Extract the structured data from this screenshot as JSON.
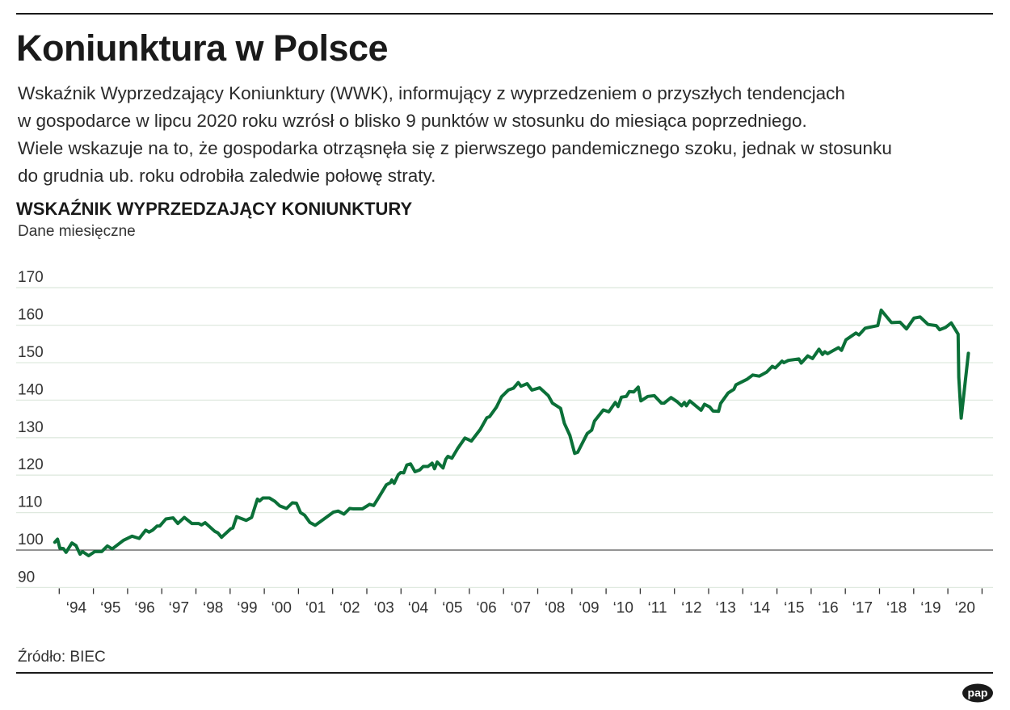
{
  "title": "Koniunktura w Polsce",
  "description": [
    "Wskaźnik Wyprzedzający Koniunktury (WWK), informujący z wyprzedzeniem o przyszłych tendencjach",
    "w gospodarce w lipcu 2020 roku wzrósł o blisko 9 punktów w stosunku do miesiąca poprzedniego.",
    "Wiele wskazuje na to, że gospodarka otrząsnęła się z pierwszego pandemicznego szoku, jednak w stosunku",
    "do grudnia ub. roku odrobiła zaledwie połowę straty."
  ],
  "source": "Źródło: BIEC",
  "logo_text": "pap",
  "colors": {
    "line": "#0b7038",
    "grid": "#dfe9df",
    "baseline": "#555555",
    "text": "#1a1a1a"
  },
  "chart_data": {
    "type": "line",
    "title": "WSKAŹNIK WYPRZEDZAJĄCY KONIUNKTURY",
    "subtitle": "Dane miesięczne",
    "ylim": [
      90,
      170
    ],
    "yticks": [
      90,
      100,
      110,
      120,
      130,
      140,
      150,
      160,
      170
    ],
    "ytick_labels": [
      "90",
      "100",
      "110",
      "120",
      "130",
      "140",
      "150",
      "160",
      "170"
    ],
    "baseline": 100,
    "grid": true,
    "xlim": [
      1994,
      2021
    ],
    "xtick_labels": [
      "‘94",
      "‘95",
      "‘96",
      "‘97",
      "‘98",
      "‘99",
      "‘00",
      "‘01",
      "‘02",
      "‘03",
      "‘04",
      "‘05",
      "‘06",
      "‘07",
      "‘08",
      "‘09",
      "‘10",
      "‘11",
      "‘12",
      "‘13",
      "‘14",
      "‘15",
      "‘16",
      "‘17",
      "‘18",
      "‘19",
      "‘20"
    ],
    "series": [
      {
        "x": [
          1993.87,
          1993.95,
          1994.02,
          1994.12,
          1994.2,
          1994.37,
          1994.49,
          1994.61,
          1994.68,
          1994.86,
          1995.04,
          1995.24,
          1995.41,
          1995.55,
          1995.88,
          1996.13,
          1996.34,
          1996.53,
          1996.63,
          1996.73,
          1996.86,
          1996.94,
          1997.12,
          1997.33,
          1997.47,
          1997.66,
          1997.88,
          1998.08,
          1998.16,
          1998.27,
          1998.55,
          1998.64,
          1998.75,
          1999.02,
          1999.08,
          1999.19,
          1999.47,
          1999.63,
          1999.8,
          1999.86,
          1999.96,
          2000.15,
          2000.31,
          2000.45,
          2000.65,
          2000.82,
          2000.94,
          2001.06,
          2001.18,
          2001.33,
          2001.49,
          2001.69,
          2002.02,
          2002.16,
          2002.33,
          2002.5,
          2002.61,
          2002.87,
          2003.08,
          2003.2,
          2003.36,
          2003.57,
          2003.69,
          2003.73,
          2003.8,
          2003.92,
          2003.99,
          2004.08,
          2004.17,
          2004.28,
          2004.41,
          2004.55,
          2004.65,
          2004.79,
          2004.91,
          2004.98,
          2005.06,
          2005.23,
          2005.31,
          2005.37,
          2005.49,
          2005.65,
          2005.87,
          2006.06,
          2006.32,
          2006.51,
          2006.59,
          2006.79,
          2006.94,
          2007.14,
          2007.29,
          2007.43,
          2007.51,
          2007.69,
          2007.83,
          2008.06,
          2008.31,
          2008.43,
          2008.67,
          2008.78,
          2008.94,
          2009.08,
          2009.17,
          2009.45,
          2009.58,
          2009.66,
          2009.92,
          2010.08,
          2010.27,
          2010.35,
          2010.45,
          2010.59,
          2010.68,
          2010.81,
          2010.94,
          2011.02,
          2011.22,
          2011.41,
          2011.62,
          2011.7,
          2011.9,
          2012.08,
          2012.21,
          2012.29,
          2012.35,
          2012.45,
          2012.78,
          2012.88,
          2013.03,
          2013.13,
          2013.29,
          2013.35,
          2013.57,
          2013.74,
          2013.8,
          2014.13,
          2014.29,
          2014.48,
          2014.7,
          2014.86,
          2014.95,
          2015.15,
          2015.2,
          2015.33,
          2015.64,
          2015.71,
          2015.9,
          2016.04,
          2016.23,
          2016.33,
          2016.4,
          2016.48,
          2016.8,
          2016.89,
          2017.02,
          2017.31,
          2017.4,
          2017.58,
          2017.95,
          2018.05,
          2018.35,
          2018.6,
          2018.79,
          2019.01,
          2019.19,
          2019.42,
          2019.66,
          2019.76,
          2019.93,
          2020.1,
          2020.3,
          2020.32,
          2020.39,
          2020.6
        ],
        "y": [
          102.1,
          102.9,
          100.5,
          100.4,
          99.4,
          101.9,
          101.2,
          98.9,
          99.6,
          98.5,
          99.6,
          99.6,
          101.1,
          100.3,
          102.6,
          103.7,
          103.1,
          105.3,
          104.8,
          105.3,
          106.4,
          106.4,
          108.3,
          108.6,
          107.1,
          108.7,
          107.1,
          107.1,
          106.7,
          107.3,
          105.0,
          104.6,
          103.4,
          105.7,
          105.9,
          108.9,
          107.9,
          108.7,
          113.6,
          113.1,
          113.9,
          113.9,
          113.0,
          111.8,
          111.1,
          112.6,
          112.5,
          110.0,
          109.3,
          107.4,
          106.6,
          107.9,
          110.1,
          110.4,
          109.6,
          111.1,
          111.0,
          111.0,
          112.2,
          111.9,
          114.2,
          117.4,
          118.0,
          118.7,
          117.8,
          120.1,
          120.7,
          120.6,
          122.7,
          123.0,
          120.9,
          121.4,
          122.3,
          122.3,
          123.2,
          121.7,
          123.5,
          121.9,
          124.2,
          125.0,
          124.5,
          127.0,
          129.9,
          129.1,
          132.2,
          135.3,
          135.6,
          138.1,
          140.9,
          142.7,
          143.2,
          144.7,
          143.7,
          144.4,
          142.7,
          143.3,
          141.2,
          139.2,
          137.8,
          133.8,
          130.6,
          125.8,
          126.1,
          131.1,
          132.0,
          134.4,
          137.4,
          136.9,
          139.4,
          138.3,
          140.8,
          141.0,
          142.3,
          142.2,
          143.5,
          139.8,
          141.0,
          141.2,
          139.2,
          139.2,
          140.7,
          139.6,
          138.5,
          139.4,
          138.5,
          139.8,
          137.3,
          138.9,
          138.2,
          137.1,
          137.0,
          139.1,
          141.9,
          142.9,
          144.1,
          145.6,
          146.7,
          146.4,
          147.5,
          149.0,
          148.6,
          150.4,
          150.0,
          150.6,
          151.0,
          149.9,
          151.8,
          151.1,
          153.6,
          152.2,
          152.9,
          152.4,
          154.0,
          153.3,
          156.1,
          157.9,
          157.4,
          159.2,
          159.9,
          164.0,
          160.7,
          160.8,
          159.0,
          161.9,
          162.2,
          160.2,
          159.9,
          158.8,
          159.4,
          160.6,
          157.6,
          146.1,
          135.2,
          152.5
        ]
      }
    ]
  }
}
